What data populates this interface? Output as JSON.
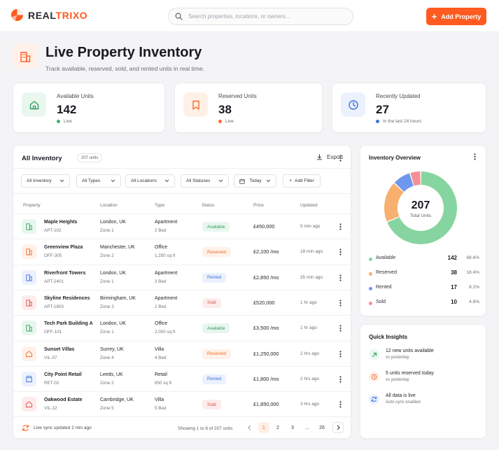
{
  "header": {
    "brand_prefix": "REAL",
    "brand_suffix": "TRIXO",
    "search_placeholder": "Search properties, locations, or owners...",
    "add_button": "Add Property"
  },
  "page": {
    "title": "Live Property Inventory",
    "subtitle": "Track available, reserved, sold, and rented units in real time."
  },
  "stats": [
    {
      "label": "Available Units",
      "value": "142",
      "note": "Live",
      "color": "#3fb26b"
    },
    {
      "label": "Reserved Units",
      "value": "38",
      "note": "Live",
      "color": "#ff6a2b"
    },
    {
      "label": "Recently Updated",
      "value": "27",
      "note": "In the last 24 hours",
      "color": "#3b6fe0"
    }
  ],
  "inventory": {
    "title": "All Inventory",
    "count": "207 units",
    "export": "Export",
    "filters": [
      "All Inventory",
      "All Types",
      "All Locations",
      "All Statuses",
      "Today"
    ],
    "add_filter": "Add Filter",
    "columns": [
      "Property",
      "Location",
      "Type",
      "Status",
      "Price",
      "Updated"
    ],
    "rows": [
      {
        "name": "Maple Heights",
        "code": "APT-102",
        "city": "London, UK",
        "zone": "Zone 1",
        "type": "Apartment",
        "size": "2 Bed",
        "status": "Available",
        "price": "£450,000",
        "updated": "5 min ago"
      },
      {
        "name": "Greenview Plaza",
        "code": "OFF-305",
        "city": "Manchester, UK",
        "zone": "Zone 2",
        "type": "Office",
        "size": "1,250 sq ft",
        "status": "Reserved",
        "price": "£2,100 /mo",
        "updated": "18 min ago"
      },
      {
        "name": "Riverfront Towers",
        "code": "APT-2401",
        "city": "London, UK",
        "zone": "Zone 1",
        "type": "Apartment",
        "size": "3 Bed",
        "status": "Rented",
        "price": "£2,850 /mo",
        "updated": "35 min ago"
      },
      {
        "name": "Skyline Residences",
        "code": "APT-1803",
        "city": "Birmingham, UK",
        "zone": "Zone 3",
        "type": "Apartment",
        "size": "2 Bed",
        "status": "Sold",
        "price": "£520,000",
        "updated": "1 hr ago"
      },
      {
        "name": "Tech Park Building A",
        "code": "OFF-101",
        "city": "London, UK",
        "zone": "Zone 1",
        "type": "Office",
        "size": "2,000 sq ft",
        "status": "Available",
        "price": "£3,500 /mo",
        "updated": "1 hr ago"
      },
      {
        "name": "Sunset Villas",
        "code": "VIL-07",
        "city": "Surrey, UK",
        "zone": "Zone 4",
        "type": "Villa",
        "size": "4 Bed",
        "status": "Reserved",
        "price": "£1,250,000",
        "updated": "2 hrs ago"
      },
      {
        "name": "City Point Retail",
        "code": "RET-02",
        "city": "Leeds, UK",
        "zone": "Zone 2",
        "type": "Retail",
        "size": "850 sq ft",
        "status": "Rented",
        "price": "£1,800 /mo",
        "updated": "2 hrs ago"
      },
      {
        "name": "Oakwood Estate",
        "code": "VIL-12",
        "city": "Cambridge, UK",
        "zone": "Zone 5",
        "type": "Villa",
        "size": "5 Bed",
        "status": "Sold",
        "price": "£1,850,000",
        "updated": "3 hrs ago"
      }
    ],
    "sync": "Live sync updated 2 min ago",
    "showing": "Showing 1 to 8 of 207 units",
    "pages": [
      "1",
      "2",
      "3",
      "...",
      "26"
    ],
    "active_page": "1"
  },
  "status_colors": {
    "Available": {
      "fg": "#2f9e5c",
      "bg": "#e8f7ee"
    },
    "Reserved": {
      "fg": "#f06a25",
      "bg": "#fff1e8"
    },
    "Rented": {
      "fg": "#3b6fe0",
      "bg": "#ebf1fd"
    },
    "Sold": {
      "fg": "#e04848",
      "bg": "#fdeceb"
    }
  },
  "overview": {
    "title": "Inventory Overview",
    "total": "207",
    "total_label": "Total Units",
    "segments": [
      {
        "label": "Available",
        "value": 142,
        "pct": "68.6%",
        "color": "#86d4a0"
      },
      {
        "label": "Reserved",
        "value": 38,
        "pct": "18.4%",
        "color": "#f8b06e"
      },
      {
        "label": "Rented",
        "value": 17,
        "pct": "8.2%",
        "color": "#6f97ee"
      },
      {
        "label": "Sold",
        "value": 10,
        "pct": "4.8%",
        "color": "#f49093"
      }
    ]
  },
  "insights": {
    "title": "Quick Insights",
    "items": [
      {
        "main": "12 new units available",
        "sub": "vs yesterday",
        "icon": "trend-up-icon"
      },
      {
        "main": "5 units reserved today",
        "sub": "vs yesterday",
        "icon": "clock-icon"
      },
      {
        "main": "All data is live",
        "sub": "Auto-sync enabled",
        "icon": "sync-icon"
      }
    ]
  }
}
